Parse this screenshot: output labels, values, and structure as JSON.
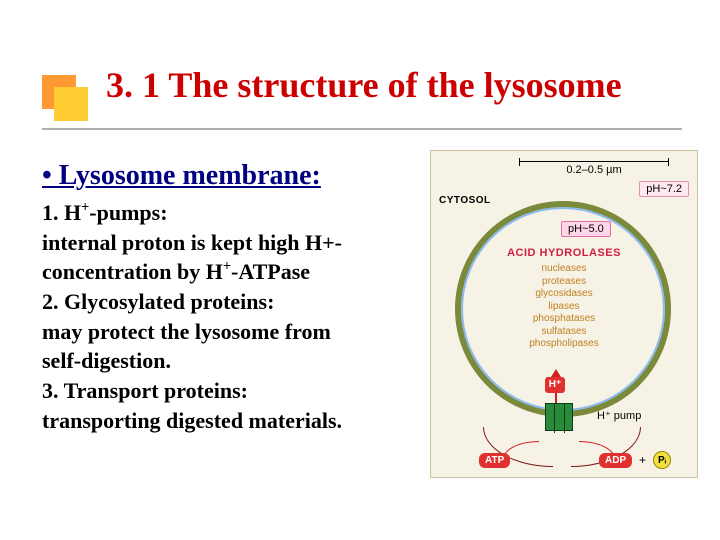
{
  "title": "3. 1 The structure of the lysosome",
  "subheading": "• Lysosome membrane:",
  "body": {
    "l1": "1. H",
    "l1sup": "+",
    "l1b": "-pumps:",
    "l2": "internal proton is kept high H+-",
    "l3a": "concentration by H",
    "l3sup": "+",
    "l3b": "-ATPase",
    "l4": "2. Glycosylated proteins:",
    "l5": "may protect the lysosome from",
    "l6": "self-digestion.",
    "l7": "3. Transport proteins:",
    "l8": "transporting digested materials."
  },
  "diagram": {
    "size_label": "0.2–0.5 µm",
    "cytosol": "CYTOSOL",
    "ph_outer": "pH~7.2",
    "ph_inner": "pH~5.0",
    "hydro_title": "ACID HYDROLASES",
    "hydrolases": [
      "nucleases",
      "proteases",
      "glycosidases",
      "lipases",
      "phosphatases",
      "sulfatases",
      "phospholipases"
    ],
    "h_plus": "H⁺",
    "pump_label": "H⁺ pump",
    "atp": "ATP",
    "adp": "ADP",
    "plus": "+",
    "pi": "Pᵢ"
  },
  "colors": {
    "title": "#cc0000",
    "subheading": "#000080",
    "membrane": "#7a8a3a",
    "pump": "#2a8a3a",
    "red_pill": "#e03030",
    "hydro_title": "#d02040",
    "hydro_list": "#c08020"
  }
}
